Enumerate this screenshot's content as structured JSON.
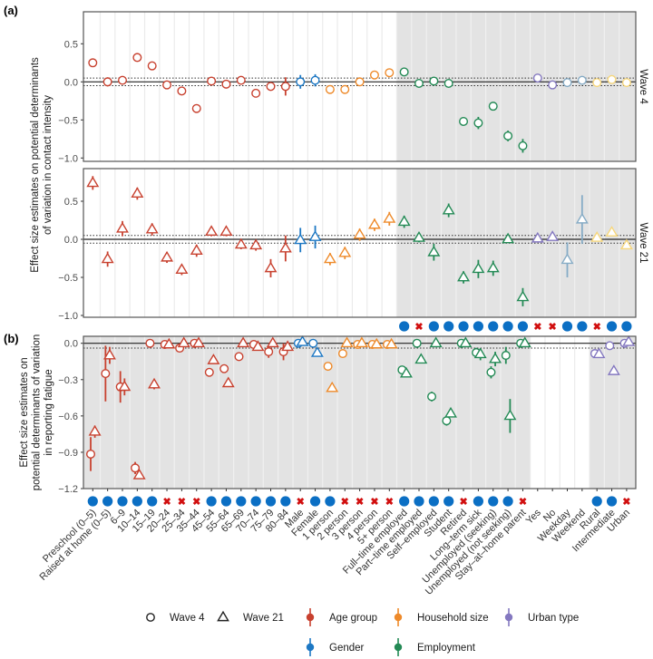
{
  "chart_data": {
    "type": "scatter",
    "panel_labels": [
      "(a)",
      "(b)"
    ],
    "categories": [
      "Preschool (0–5)",
      "Raised at home (0–5)",
      "6–9",
      "10–14",
      "15–19",
      "20–24",
      "25–34",
      "35–44",
      "45–54",
      "55–64",
      "65–69",
      "70–74",
      "75–79",
      "80–84",
      "Male",
      "Female",
      "1 person",
      "2 person",
      "3 person",
      "4 person",
      "5+ person",
      "Full–time employed",
      "Part–time employed",
      "Self–employed",
      "Student",
      "Retired",
      "Long–term sick",
      "Unemployed (seeking)",
      "Unemployed (not seeking)",
      "Stay–at–home parent",
      "Yes",
      "No",
      "Weekday",
      "Weekend",
      "Rural",
      "Intermediate",
      "Urban"
    ],
    "category_group": [
      "age",
      "age",
      "age",
      "age",
      "age",
      "age",
      "age",
      "age",
      "age",
      "age",
      "age",
      "age",
      "age",
      "age",
      "gender",
      "gender",
      "household",
      "household",
      "household",
      "household",
      "household",
      "employment",
      "employment",
      "employment",
      "employment",
      "employment",
      "employment",
      "employment",
      "employment",
      "employment",
      "yesno",
      "yesno",
      "daytype",
      "daytype",
      "urban",
      "urban",
      "urban"
    ],
    "colors": {
      "age": "#c8412f",
      "gender": "#1d78c4",
      "household": "#ee8a2a",
      "employment": "#238a55",
      "urban": "#8478c0",
      "yesno": "#8478c0",
      "daytype": "#86acc6",
      "urban_a": "#f7d77c",
      "significant": "#0b6fc4",
      "not_significant": "#d10f0f",
      "shade": "#e3e3e3"
    },
    "panel_a": {
      "ylabel": [
        "Effect size estimates on potential determinants",
        "of variation in contact intensity"
      ],
      "ylim": [
        -1.05,
        0.9
      ],
      "yticks": [
        0.5,
        0.0,
        -0.5,
        -1.0
      ],
      "ytick_labels": [
        "0.5",
        "0.0",
        "−0.5",
        "−1.0"
      ],
      "reference_band": 0.05,
      "shaded_from_category": 21,
      "facets": [
        {
          "strip": "Wave 4",
          "shape": "circle",
          "values": [
            0.25,
            0.0,
            0.02,
            0.32,
            0.21,
            -0.04,
            -0.12,
            -0.35,
            0.01,
            -0.03,
            0.02,
            -0.15,
            -0.06,
            -0.06,
            0.0,
            0.02,
            -0.1,
            -0.1,
            0.0,
            0.09,
            0.12,
            0.13,
            -0.02,
            0.01,
            -0.02,
            -0.52,
            -0.54,
            -0.32,
            -0.71,
            -0.84,
            0.05,
            -0.04,
            -0.01,
            0.02,
            -0.01,
            0.03,
            -0.01
          ],
          "ci": [
            0.02,
            0.06,
            0.03,
            0.02,
            0.02,
            0.02,
            0.02,
            0.02,
            0.02,
            0.02,
            0.02,
            0.03,
            0.05,
            0.12,
            0.09,
            0.08,
            0.02,
            0.02,
            0.02,
            0.02,
            0.02,
            0.02,
            0.02,
            0.02,
            0.02,
            0.02,
            0.08,
            0.05,
            0.07,
            0.09,
            0.04,
            0.04,
            0.02,
            0.02,
            0.02,
            0.02,
            0.02
          ]
        },
        {
          "strip": "Wave 21",
          "shape": "triangle",
          "values": [
            0.74,
            -0.26,
            0.14,
            0.6,
            0.13,
            -0.24,
            -0.4,
            -0.15,
            0.1,
            0.1,
            -0.07,
            -0.08,
            -0.38,
            -0.12,
            -0.01,
            0.03,
            -0.26,
            -0.18,
            0.06,
            0.19,
            0.27,
            0.23,
            0.02,
            -0.17,
            0.38,
            -0.5,
            -0.39,
            -0.38,
            0.0,
            -0.76,
            0.01,
            0.03,
            -0.27,
            0.26,
            0.02,
            0.09,
            -0.08
          ],
          "ci": [
            0.09,
            0.1,
            0.1,
            0.08,
            0.08,
            0.07,
            0.07,
            0.08,
            0.06,
            0.06,
            0.06,
            0.07,
            0.12,
            0.17,
            0.16,
            0.15,
            0.08,
            0.08,
            0.08,
            0.08,
            0.09,
            0.08,
            0.06,
            0.11,
            0.09,
            0.08,
            0.12,
            0.1,
            0.04,
            0.12,
            0.02,
            0.02,
            0.23,
            0.32,
            0.02,
            0.02,
            0.02
          ]
        }
      ],
      "significance": [
        null,
        null,
        null,
        null,
        null,
        null,
        null,
        null,
        null,
        null,
        null,
        null,
        null,
        null,
        null,
        null,
        null,
        null,
        null,
        null,
        null,
        true,
        false,
        true,
        true,
        true,
        true,
        true,
        true,
        true,
        false,
        false,
        true,
        true,
        false,
        true,
        true
      ]
    },
    "panel_b": {
      "ylabel": [
        "Effect size estimates on",
        "potential determinants of variation",
        "in reporting fatigue"
      ],
      "ylim": [
        -1.2,
        0.03
      ],
      "yticks": [
        0.0,
        -0.3,
        -0.6,
        -0.9,
        -1.2
      ],
      "ytick_labels": [
        "0.0",
        "−0.3",
        "−0.6",
        "−0.9",
        "−1.2"
      ],
      "reference_line": -0.04,
      "unshaded_categories": [
        30,
        31,
        32,
        33
      ],
      "series": [
        {
          "name": "Wave 4",
          "shape": "circle",
          "values": [
            -0.915,
            -0.25,
            -0.36,
            -1.03,
            0.0,
            -0.01,
            -0.04,
            0.0,
            -0.24,
            -0.21,
            -0.11,
            -0.01,
            -0.07,
            -0.07,
            0.0,
            0.0,
            -0.19,
            -0.085,
            -0.01,
            -0.01,
            -0.01,
            -0.22,
            0.0,
            -0.44,
            -0.64,
            0.0,
            -0.077,
            -0.24,
            -0.1,
            0.0,
            null,
            null,
            null,
            null,
            -0.085,
            -0.02,
            0.0
          ],
          "ci": [
            0.14,
            0.23,
            0.13,
            0.05,
            0.01,
            0.01,
            0.01,
            0.01,
            0.03,
            0.02,
            0.02,
            0.01,
            0.05,
            0.07,
            0.01,
            0.01,
            0.01,
            0.02,
            0.01,
            0.01,
            0.01,
            0.02,
            0.01,
            0.04,
            0.04,
            0.01,
            0.04,
            0.05,
            0.07,
            0.01,
            null,
            null,
            null,
            null,
            0.02,
            0.01,
            0.01
          ]
        },
        {
          "name": "Wave 21",
          "shape": "triangle",
          "values": [
            -0.73,
            -0.1,
            -0.36,
            -1.09,
            -0.34,
            -0.01,
            0.0,
            0.0,
            -0.14,
            -0.33,
            0.0,
            -0.03,
            0.0,
            -0.03,
            0.01,
            -0.08,
            -0.37,
            0.0,
            0.0,
            -0.01,
            -0.01,
            -0.25,
            -0.135,
            0.0,
            -0.58,
            0.0,
            -0.09,
            -0.13,
            -0.6,
            0.0,
            null,
            null,
            null,
            null,
            -0.09,
            -0.23,
            0.01
          ],
          "ci": [
            0.05,
            0.07,
            0.07,
            0.03,
            0.04,
            0.01,
            0.01,
            0.01,
            0.03,
            0.02,
            0.01,
            0.02,
            0.01,
            0.02,
            0.01,
            0.01,
            0.01,
            0.01,
            0.01,
            0.01,
            0.01,
            0.01,
            0.03,
            0.01,
            0.03,
            0.01,
            0.05,
            0.06,
            0.14,
            0.01,
            null,
            null,
            null,
            null,
            0.01,
            0.01,
            0.01
          ]
        }
      ],
      "significance": [
        true,
        true,
        true,
        true,
        true,
        false,
        false,
        false,
        true,
        true,
        true,
        true,
        true,
        true,
        false,
        true,
        true,
        false,
        false,
        false,
        false,
        true,
        true,
        true,
        true,
        false,
        true,
        true,
        true,
        false,
        null,
        null,
        null,
        null,
        true,
        true,
        false
      ]
    },
    "legend": {
      "shapes": [
        {
          "label": "Wave 4",
          "shape": "circle"
        },
        {
          "label": "Wave 21",
          "shape": "triangle"
        }
      ],
      "groups": [
        {
          "label": "Age group",
          "group": "age"
        },
        {
          "label": "Household size",
          "group": "household"
        },
        {
          "label": "Urban type",
          "group": "urban"
        },
        {
          "label": "Gender",
          "group": "gender"
        },
        {
          "label": "Employment",
          "group": "employment"
        }
      ]
    }
  }
}
